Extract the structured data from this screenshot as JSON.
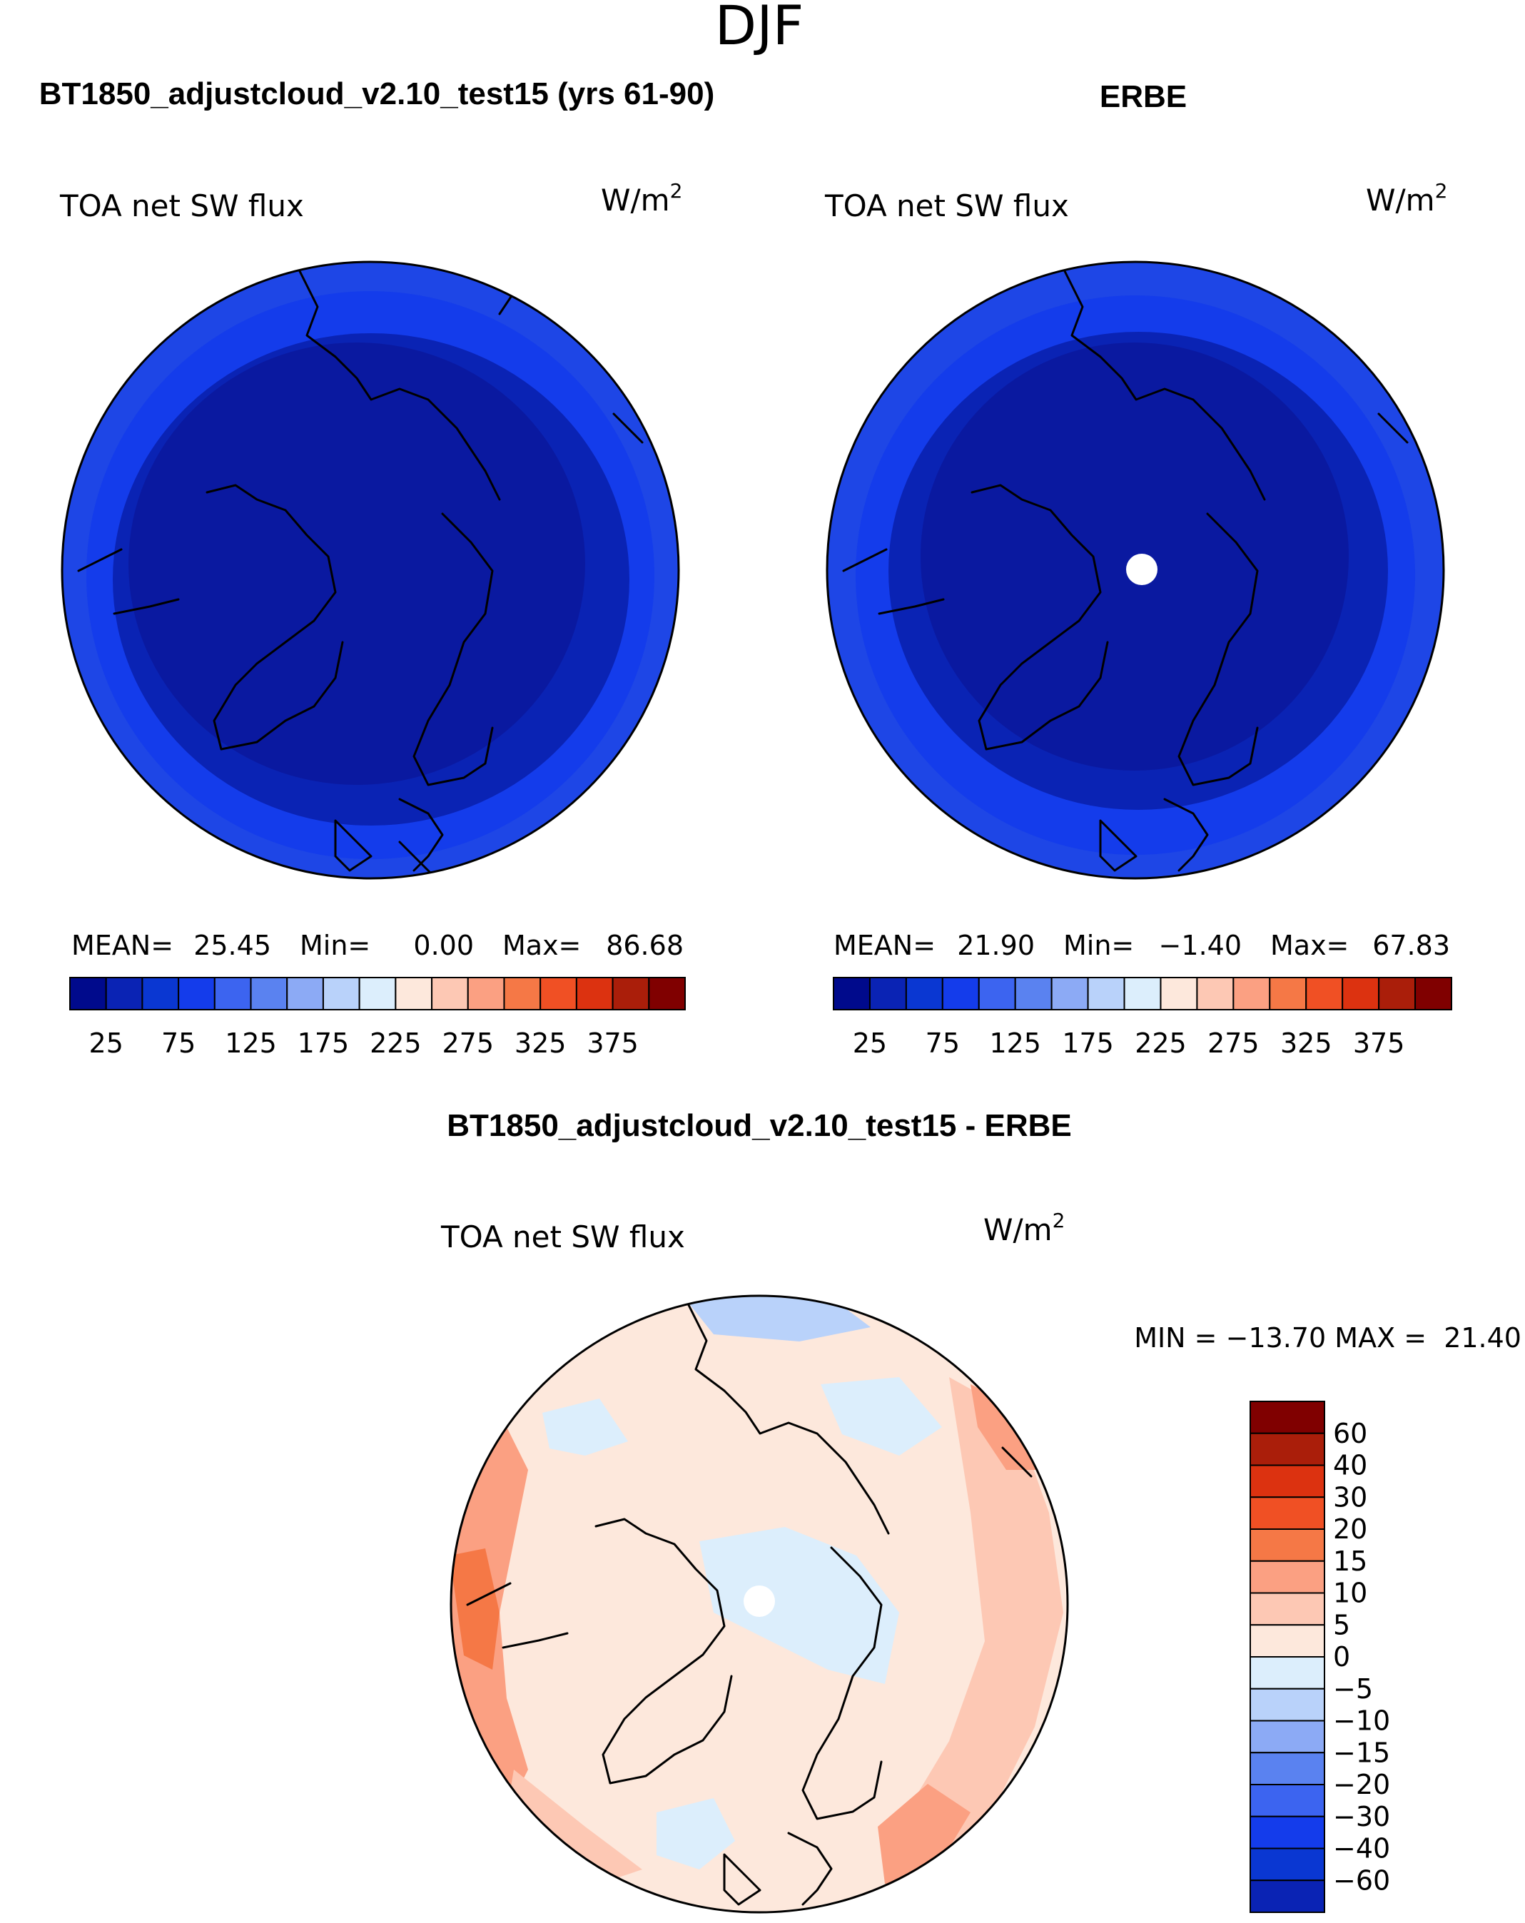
{
  "figure_title": "DJF",
  "chart_data": [
    {
      "type": "heatmap",
      "title": "BT1850_adjustcloud_v2.10_test15 (yrs 61-90)",
      "variable": "TOA net SW flux",
      "units": "W/m",
      "units_exp": "2",
      "stats": {
        "mean_label": "MEAN=",
        "mean": "25.45",
        "min_label": "Min=",
        "min": "0.00",
        "max_label": "Max=",
        "max": "86.68"
      },
      "colorbar": {
        "orientation": "horizontal",
        "levels": [
          25,
          50,
          75,
          100,
          125,
          150,
          175,
          200,
          225,
          250,
          275,
          300,
          325,
          350,
          375
        ],
        "tick_labels": [
          "25",
          "75",
          "125",
          "175",
          "225",
          "275",
          "325",
          "375"
        ],
        "colors": [
          "#000a8c",
          "#0a23b4",
          "#0a37d2",
          "#143ceb",
          "#3c64f0",
          "#5a82f0",
          "#8caaf5",
          "#b9d2fa",
          "#dceefc",
          "#fde8dc",
          "#fdc8b4",
          "#fba082",
          "#f57846",
          "#f05024",
          "#dc3210",
          "#aa1e0a",
          "#800000"
        ]
      },
      "fill_zones": [
        {
          "from_pole_fraction": 1.0,
          "color": "#1e46e6"
        },
        {
          "from_pole_fraction": 0.92,
          "color": "#143ceb"
        },
        {
          "from_pole_fraction": 0.8,
          "color": "#0a23b4"
        },
        {
          "from_pole_fraction": 0.72,
          "color": "#0a19a0"
        }
      ]
    },
    {
      "type": "heatmap",
      "title": "ERBE",
      "variable": "TOA net SW flux",
      "units": "W/m",
      "units_exp": "2",
      "stats": {
        "mean_label": "MEAN=",
        "mean": "21.90",
        "min_label": "Min=",
        "min": "−1.40",
        "max_label": "Max=",
        "max": "67.83"
      },
      "colorbar": {
        "orientation": "horizontal",
        "levels": [
          25,
          50,
          75,
          100,
          125,
          150,
          175,
          200,
          225,
          250,
          275,
          300,
          325,
          350,
          375
        ],
        "tick_labels": [
          "25",
          "75",
          "125",
          "175",
          "225",
          "275",
          "325",
          "375"
        ],
        "colors": [
          "#000a8c",
          "#0a23b4",
          "#0a37d2",
          "#143ceb",
          "#3c64f0",
          "#5a82f0",
          "#8caaf5",
          "#b9d2fa",
          "#dceefc",
          "#fde8dc",
          "#fdc8b4",
          "#fba082",
          "#f57846",
          "#f05024",
          "#dc3210",
          "#aa1e0a",
          "#800000"
        ]
      },
      "fill_zones": [
        {
          "from_pole_fraction": 1.0,
          "color": "#1e46e6"
        },
        {
          "from_pole_fraction": 0.9,
          "color": "#143ceb"
        },
        {
          "from_pole_fraction": 0.78,
          "color": "#0a23b4"
        },
        {
          "from_pole_fraction": 0.7,
          "color": "#0a19a0"
        }
      ]
    },
    {
      "type": "heatmap",
      "title": "BT1850_adjustcloud_v2.10_test15 - ERBE",
      "variable": "TOA net SW flux",
      "units": "W/m",
      "units_exp": "2",
      "stats": {
        "text": "MIN = −13.70 MAX =  21.40"
      },
      "colorbar": {
        "orientation": "vertical",
        "levels": [
          -60,
          -40,
          -30,
          -20,
          -15,
          -10,
          -5,
          0,
          5,
          10,
          15,
          20,
          30,
          40,
          60
        ],
        "tick_labels": [
          "60",
          "40",
          "30",
          "20",
          "15",
          "10",
          "5",
          "0",
          "−5",
          "−10",
          "−15",
          "−20",
          "−30",
          "−40",
          "−60"
        ],
        "colors": [
          "#800000",
          "#aa1e0a",
          "#dc3210",
          "#f05024",
          "#f57846",
          "#fba082",
          "#fdc8b4",
          "#fde8dc",
          "#dceefc",
          "#b9d2fa",
          "#8caaf5",
          "#5a82f0",
          "#3c64f0",
          "#143ceb",
          "#0a37d2",
          "#0a23b4"
        ]
      },
      "fill_zones": [
        {
          "from_pole_fraction": 1.0,
          "color": "#fdd2bd"
        },
        {
          "from_pole_fraction": 0.85,
          "color": "#fde8dc"
        }
      ]
    }
  ]
}
